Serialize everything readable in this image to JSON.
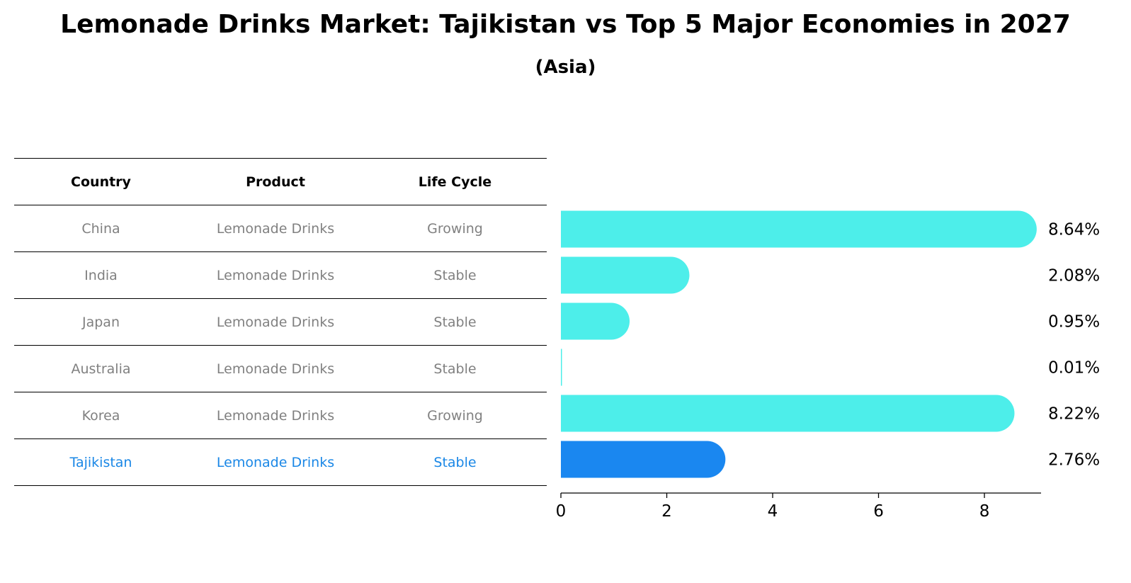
{
  "title": "Lemonade Drinks Market: Tajikistan vs Top 5 Major Economies in 2027",
  "subtitle": "(Asia)",
  "table": {
    "headers": [
      "Country",
      "Product",
      "Life Cycle"
    ],
    "rows": [
      {
        "country": "China",
        "product": "Lemonade Drinks",
        "life_cycle": "Growing"
      },
      {
        "country": "India",
        "product": "Lemonade Drinks",
        "life_cycle": "Stable"
      },
      {
        "country": "Japan",
        "product": "Lemonade Drinks",
        "life_cycle": "Stable"
      },
      {
        "country": "Australia",
        "product": "Lemonade Drinks",
        "life_cycle": "Stable"
      },
      {
        "country": "Korea",
        "product": "Lemonade Drinks",
        "life_cycle": "Growing"
      },
      {
        "country": "Tajikistan",
        "product": "Lemonade Drinks",
        "life_cycle": "Stable"
      }
    ]
  },
  "colors": {
    "bar": "#4deeea",
    "highlight": "#1a87f0",
    "muted_text": "#808080",
    "highlight_text": "#1a87e6"
  },
  "chart_data": {
    "type": "bar",
    "orientation": "horizontal",
    "categories": [
      "China",
      "India",
      "Japan",
      "Australia",
      "Korea",
      "Tajikistan"
    ],
    "values": [
      8.64,
      2.08,
      0.95,
      0.01,
      8.22,
      2.76
    ],
    "value_labels": [
      "8.64%",
      "2.08%",
      "0.95%",
      "0.01%",
      "8.22%",
      "2.76%"
    ],
    "highlight_category": "Tajikistan",
    "xlim": [
      0,
      9.07
    ],
    "xticks": [
      0,
      2,
      4,
      6,
      8
    ],
    "xlabel": "",
    "ylabel": ""
  }
}
